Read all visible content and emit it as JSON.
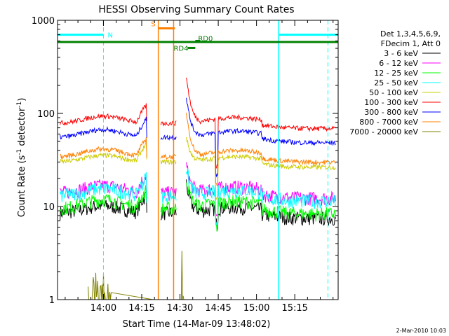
{
  "chart_data": {
    "type": "line",
    "title": "HESSI Observing Summary Count Rates",
    "xlabel": "Start Time (14-Mar-09 13:48:02)",
    "ylabel_main": "Count Rate (s",
    "ylabel_sup1": "-1",
    "ylabel_mid": " detector",
    "ylabel_sup2": "-1",
    "ylabel_end": ")",
    "y_scale": "log",
    "ylim": [
      1,
      1000
    ],
    "xlim_minutes": [
      -18,
      92
    ],
    "y_ticks": [
      {
        "value": 1,
        "label": "1"
      },
      {
        "value": 10,
        "label": "10"
      },
      {
        "value": 100,
        "label": "100"
      },
      {
        "value": 1000,
        "label": "1000"
      }
    ],
    "x_ticks": [
      {
        "minute": 0,
        "label": "14:00"
      },
      {
        "minute": 15,
        "label": "14:15"
      },
      {
        "minute": 30,
        "label": "14:30"
      },
      {
        "minute": 45,
        "label": "14:45"
      },
      {
        "minute": 60,
        "label": "15:00"
      },
      {
        "minute": 75,
        "label": "15:15"
      }
    ],
    "footer_date": "2-Mar-2010 10:03",
    "legend_header": [
      "Det 1,3,4,5,6,9,",
      "FDecim 1, Att 0"
    ],
    "series": [
      {
        "name": "3 - 6 keV",
        "color": "#000000",
        "level": 8.5,
        "hump": 1.2,
        "dip": 6.5,
        "peak": 11
      },
      {
        "name": "6 - 12 keV",
        "color": "#ff00ff",
        "level": 14,
        "hump": 1.2,
        "dip": 8,
        "peak": 16
      },
      {
        "name": "12 - 25 keV",
        "color": "#00ff00",
        "level": 9.5,
        "hump": 1.25,
        "dip": 6,
        "peak": 13
      },
      {
        "name": "25 - 50 keV",
        "color": "#00ffff",
        "level": 13,
        "hump": 1.2,
        "dip": 6.5,
        "peak": 15
      },
      {
        "name": "50 - 100 keV",
        "color": "#cccc00",
        "level": 30,
        "hump": 1.18,
        "dip": 12,
        "peak": 30
      },
      {
        "name": "100 - 300 keV",
        "color": "#ff0000",
        "level": 78,
        "hump": 1.2,
        "dip": 27,
        "peak": 200
      },
      {
        "name": "300 - 800 keV",
        "color": "#0000ff",
        "level": 55,
        "hump": 1.22,
        "dip": 22,
        "peak": 110
      },
      {
        "name": "800 - 7000 keV",
        "color": "#ff8000",
        "level": 34,
        "hump": 1.22,
        "dip": 17,
        "peak": 80
      },
      {
        "name": "7000 - 20000 keV",
        "color": "#808000",
        "level": 1,
        "hump": 1,
        "dip": 1,
        "peak": 1
      }
    ],
    "gaps_minutes": [
      [
        17,
        22.5
      ],
      [
        28.5,
        32.3
      ]
    ],
    "dashed_lines": [
      {
        "minute": 0,
        "color": "#00ffff"
      },
      {
        "minute": 27.5,
        "color": "#ff8000"
      },
      {
        "minute": 88,
        "color": "#00ffff"
      }
    ],
    "solid_lines": [
      {
        "minute": 21.5,
        "color": "#ff8000"
      },
      {
        "minute": 27.5,
        "color": "#ff8000"
      },
      {
        "minute": 68.7,
        "color": "#00ffff"
      }
    ],
    "flag_bars": [
      {
        "label": "N",
        "color": "#00ffff",
        "from": -18,
        "to": 0,
        "level": 700
      },
      {
        "label": "",
        "color": "#00ffff",
        "from": 68.7,
        "to": 92,
        "level": 700
      },
      {
        "label": "S",
        "color": "#ff8000",
        "from": 21.5,
        "to": 28,
        "level": 820
      },
      {
        "label": "",
        "color": "#008000",
        "from": -18,
        "to": 92,
        "level": 585
      },
      {
        "label": "RD0",
        "color": "#008000",
        "from": 36,
        "to": 38,
        "level": 600
      },
      {
        "label": "RD4",
        "color": "#008000",
        "from": 33,
        "to": 36,
        "level": 505
      }
    ]
  }
}
